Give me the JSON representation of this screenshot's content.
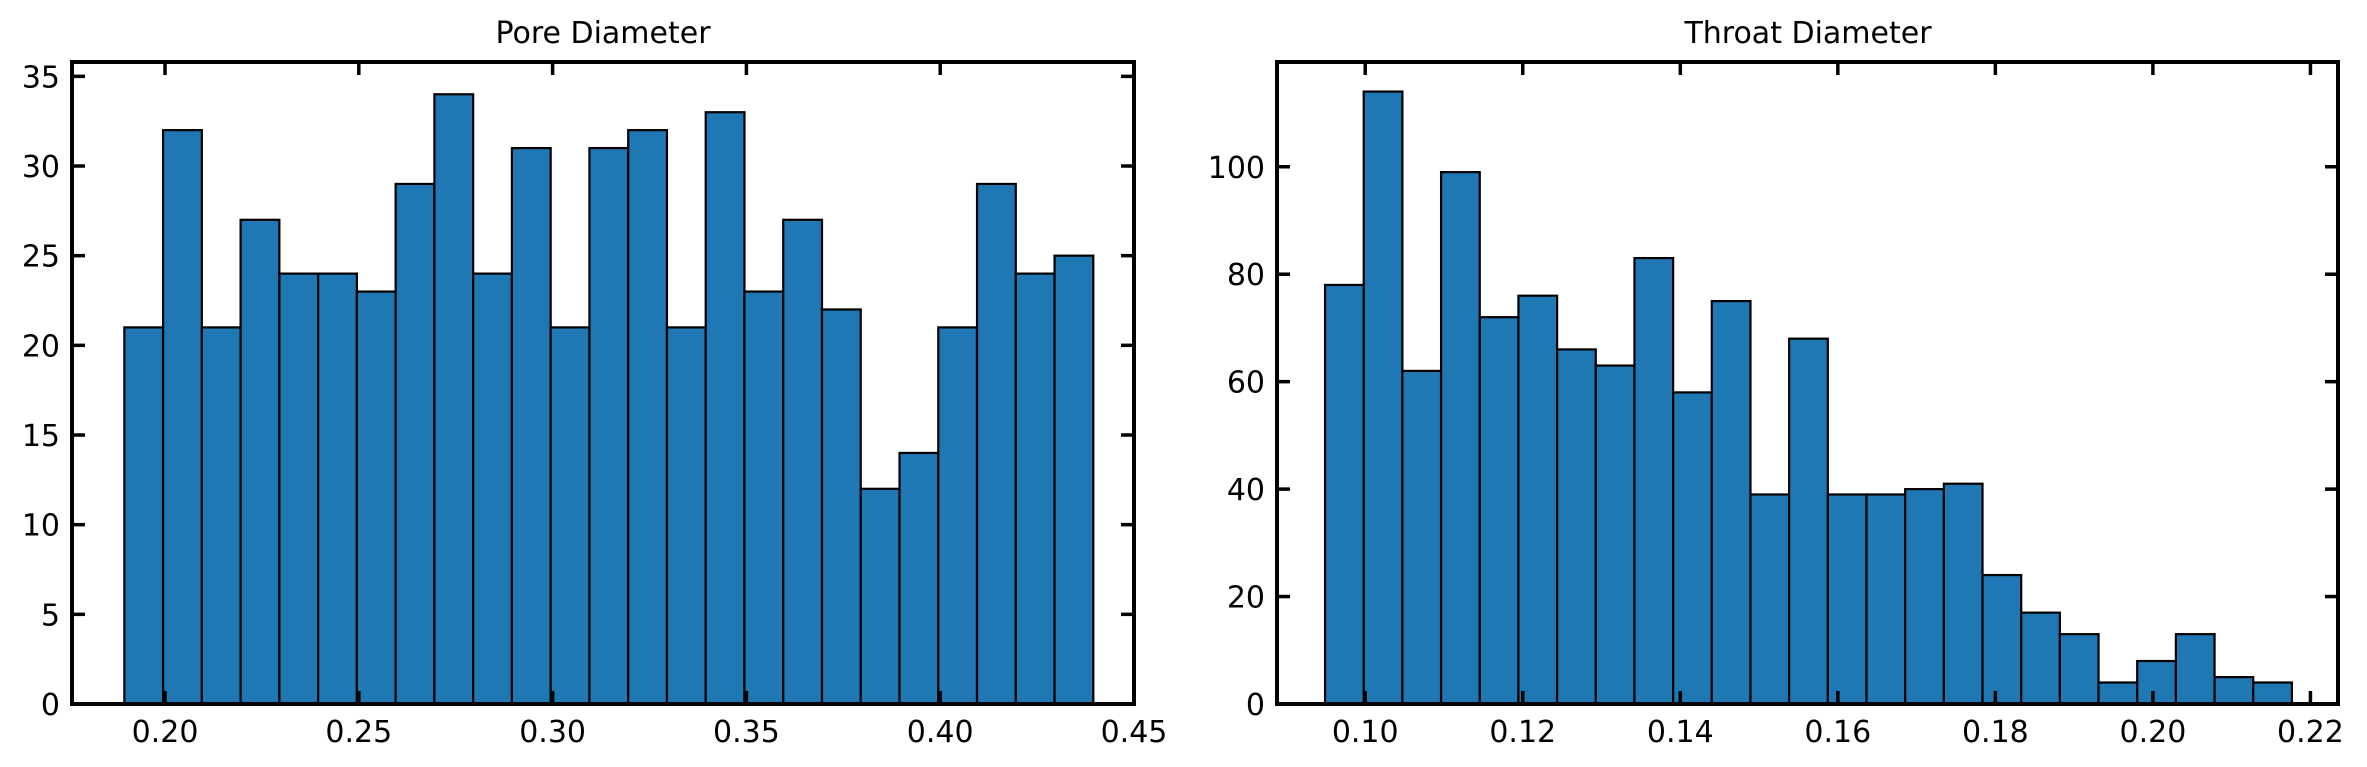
{
  "chart_data": [
    {
      "type": "bar",
      "title": "Pore Diameter",
      "xlabel": "",
      "ylabel": "",
      "bar_color": "#1f77b4",
      "edge_color": "#000000",
      "xlim": [
        0.176,
        0.45
      ],
      "ylim": [
        0,
        35.8
      ],
      "xticks": [
        0.2,
        0.25,
        0.3,
        0.35,
        0.4,
        0.45
      ],
      "xtick_labels": [
        "0.20",
        "0.25",
        "0.30",
        "0.35",
        "0.40",
        "0.45"
      ],
      "yticks": [
        0,
        5,
        10,
        15,
        20,
        25,
        30,
        35
      ],
      "ytick_labels": [
        "0",
        "5",
        "10",
        "15",
        "20",
        "25",
        "30",
        "35"
      ],
      "bin_start": 0.1895,
      "bin_width": 0.01,
      "values": [
        21,
        32,
        21,
        27,
        24,
        24,
        23,
        29,
        34,
        24,
        31,
        21,
        31,
        32,
        21,
        33,
        23,
        27,
        22,
        12,
        14,
        21,
        29,
        24,
        25
      ],
      "grid": false
    },
    {
      "type": "bar",
      "title": "Throat Diameter",
      "xlabel": "",
      "ylabel": "",
      "bar_color": "#1f77b4",
      "edge_color": "#000000",
      "xlim": [
        0.0888,
        0.2235
      ],
      "ylim": [
        0,
        119.5
      ],
      "xticks": [
        0.1,
        0.12,
        0.14,
        0.16,
        0.18,
        0.2,
        0.22
      ],
      "xtick_labels": [
        "0.10",
        "0.12",
        "0.14",
        "0.16",
        "0.18",
        "0.20",
        "0.22"
      ],
      "yticks": [
        0,
        20,
        40,
        60,
        80,
        100
      ],
      "ytick_labels": [
        "0",
        "20",
        "40",
        "60",
        "80",
        "100"
      ],
      "bin_start": 0.0949,
      "bin_width": 0.00491,
      "values": [
        78,
        114,
        62,
        99,
        72,
        76,
        66,
        63,
        83,
        58,
        75,
        39,
        68,
        39,
        39,
        40,
        41,
        24,
        17,
        13,
        4,
        8,
        13,
        5,
        4
      ],
      "grid": false
    }
  ]
}
